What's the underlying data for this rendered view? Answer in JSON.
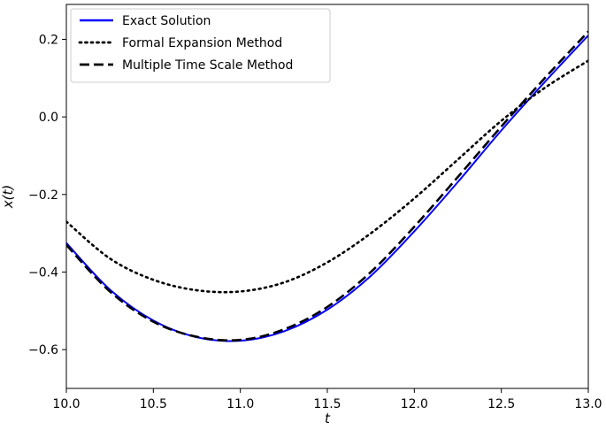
{
  "chart_data": {
    "type": "line",
    "title": "",
    "xlabel": "t",
    "ylabel": "x(t)",
    "xlim": [
      10.0,
      13.0
    ],
    "ylim": [
      -0.7,
      0.29
    ],
    "xticks": [
      10.0,
      10.5,
      11.0,
      11.5,
      12.0,
      12.5,
      13.0
    ],
    "xtick_labels": [
      "10.0",
      "10.5",
      "11.0",
      "11.5",
      "12.0",
      "12.5",
      "13.0"
    ],
    "yticks": [
      -0.6,
      -0.4,
      -0.2,
      0.0,
      0.2
    ],
    "ytick_labels": [
      "−0.6",
      "−0.4",
      "−0.2",
      "0.0",
      "0.2"
    ],
    "grid": false,
    "legend_position": "top-left",
    "series": [
      {
        "name": "Exact Solution",
        "color": "#0000ff",
        "style": "solid",
        "x": [
          10.0,
          10.25,
          10.5,
          10.75,
          11.0,
          11.25,
          11.5,
          11.75,
          12.0,
          12.25,
          12.5,
          12.75,
          13.0
        ],
        "y": [
          -0.325,
          -0.445,
          -0.525,
          -0.568,
          -0.577,
          -0.553,
          -0.497,
          -0.41,
          -0.295,
          -0.168,
          -0.035,
          0.09,
          0.21
        ]
      },
      {
        "name": "Formal Expansion Method",
        "color": "#000000",
        "style": "dotted",
        "x": [
          10.0,
          10.25,
          10.5,
          10.75,
          11.0,
          11.25,
          11.5,
          11.75,
          12.0,
          12.25,
          12.5,
          12.75,
          13.0
        ],
        "y": [
          -0.27,
          -0.365,
          -0.42,
          -0.447,
          -0.45,
          -0.427,
          -0.375,
          -0.3,
          -0.21,
          -0.11,
          -0.01,
          0.075,
          0.145
        ]
      },
      {
        "name": "Multiple Time Scale Method",
        "color": "#000000",
        "style": "dashed",
        "x": [
          10.0,
          10.25,
          10.5,
          10.75,
          11.0,
          11.25,
          11.5,
          11.75,
          12.0,
          12.25,
          12.5,
          12.75,
          13.0
        ],
        "y": [
          -0.33,
          -0.45,
          -0.528,
          -0.567,
          -0.575,
          -0.548,
          -0.49,
          -0.4,
          -0.283,
          -0.155,
          -0.025,
          0.1,
          0.22
        ]
      }
    ]
  }
}
